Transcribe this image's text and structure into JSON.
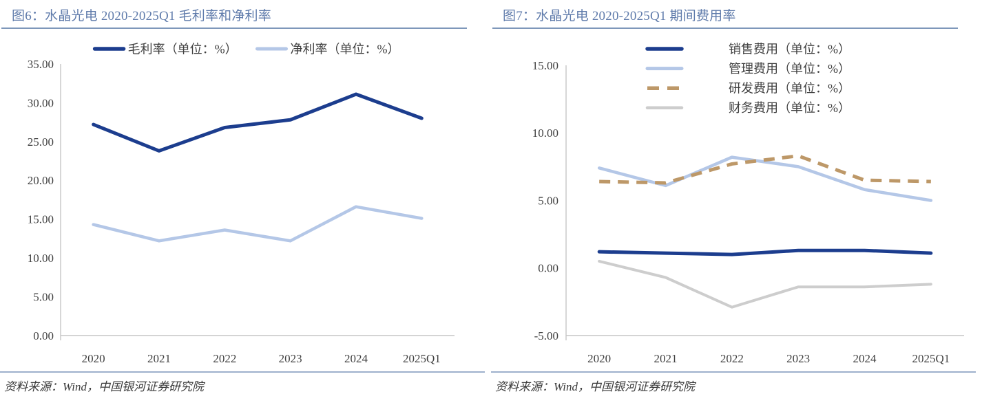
{
  "page": {
    "background": "#ffffff"
  },
  "panels": [
    {
      "title": "图6：水晶光电 2020-2025Q1 毛利率和净利率",
      "source": "资料来源：Wind，中国银河证券研究院"
    },
    {
      "title": "图7：水晶光电 2020-2025Q1 期间费用率",
      "source": "资料来源：Wind，中国银河证券研究院"
    }
  ],
  "colors": {
    "title_text": "#5f7bab",
    "title_rule": "#7e97ba",
    "bottom_rule": "#9db0cc",
    "axis_line": "#c6c6c6",
    "axis_text": "#404040",
    "navy": "#1c3d8e",
    "light_blue": "#b4c7e7",
    "tan": "#bd9868",
    "gray": "#cdcdcd"
  },
  "chart_data": [
    {
      "type": "line",
      "title": "图6：水晶光电 2020-2025Q1 毛利率和净利率",
      "categories": [
        "2020",
        "2021",
        "2022",
        "2023",
        "2024",
        "2025Q1"
      ],
      "series": [
        {
          "name": "毛利率（单位：%）",
          "color": "#1c3d8e",
          "dash": false,
          "width": 5,
          "values": [
            27.2,
            23.8,
            26.8,
            27.8,
            31.1,
            28.0
          ]
        },
        {
          "name": "净利率（单位：%）",
          "color": "#b4c7e7",
          "dash": false,
          "width": 4.5,
          "values": [
            14.3,
            12.2,
            13.6,
            12.2,
            16.6,
            15.1
          ]
        }
      ],
      "ylim": [
        0,
        35
      ],
      "ytick_step": 5,
      "ytick_labels": [
        "0.00",
        "5.00",
        "10.00",
        "15.00",
        "20.00",
        "25.00",
        "30.00",
        "35.00"
      ],
      "grid": false,
      "legend_layout": "row"
    },
    {
      "type": "line",
      "title": "图7：水晶光电 2020-2025Q1 期间费用率",
      "categories": [
        "2020",
        "2021",
        "2022",
        "2023",
        "2024",
        "2025Q1"
      ],
      "series": [
        {
          "name": "销售费用（单位：%）",
          "color": "#1c3d8e",
          "dash": false,
          "width": 5,
          "values": [
            1.2,
            1.1,
            1.0,
            1.3,
            1.3,
            1.1
          ]
        },
        {
          "name": "管理费用（单位：%）",
          "color": "#b4c7e7",
          "dash": false,
          "width": 4.5,
          "values": [
            7.4,
            6.1,
            8.2,
            7.5,
            5.8,
            5.0
          ]
        },
        {
          "name": "研发费用（单位：%）",
          "color": "#bd9868",
          "dash": true,
          "width": 5,
          "values": [
            6.4,
            6.3,
            7.7,
            8.3,
            6.5,
            6.4
          ]
        },
        {
          "name": "财务费用（单位：%）",
          "color": "#cdcdcd",
          "dash": false,
          "width": 4,
          "values": [
            0.5,
            -0.7,
            -2.9,
            -1.4,
            -1.4,
            -1.2
          ]
        }
      ],
      "ylim": [
        -5,
        15
      ],
      "ytick_step": 5,
      "ytick_labels": [
        "-5.00",
        "0.00",
        "5.00",
        "10.00",
        "15.00"
      ],
      "grid": false,
      "legend_layout": "column"
    }
  ]
}
